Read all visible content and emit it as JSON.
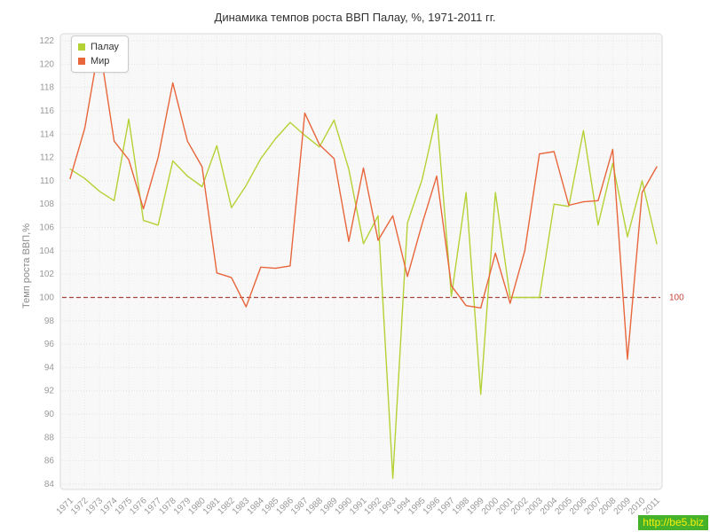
{
  "title": "Динамика темпов роста ВВП Палау, %, 1971-2011 гг.",
  "ylabel": "Темп роста ВВП,%",
  "watermark": "http://be5.biz",
  "colors": {
    "palau": "#b4d235",
    "world": "#e8663c",
    "refline": "#a94642",
    "refline_label": "#c6443a",
    "grid_h": "#e2e2e2",
    "grid_v": "#ebebeb",
    "plot_bg": "#f8f8f8",
    "plot_border": "#d9d9d9",
    "tick_text": "#999999"
  },
  "ref_line": {
    "value": 100,
    "label": "100"
  },
  "chart_data": {
    "type": "line",
    "title": "Динамика темпов роста ВВП Палау, %, 1971-2011 гг.",
    "xlabel": "",
    "ylabel": "Темп роста ВВП,%",
    "ylim": [
      84,
      122
    ],
    "ytick_step": 2,
    "grid": true,
    "legend_position": "top-left",
    "x": [
      1971,
      1972,
      1973,
      1974,
      1975,
      1976,
      1977,
      1978,
      1979,
      1980,
      1981,
      1982,
      1983,
      1984,
      1985,
      1986,
      1987,
      1988,
      1989,
      1990,
      1991,
      1992,
      1993,
      1994,
      1995,
      1996,
      1997,
      1998,
      1999,
      2000,
      2001,
      2002,
      2003,
      2004,
      2005,
      2006,
      2007,
      2008,
      2009,
      2010,
      2011
    ],
    "series": [
      {
        "name": "Палау",
        "color": "#b4d235",
        "values": [
          111.0,
          110.2,
          109.1,
          108.3,
          115.3,
          106.6,
          106.2,
          111.7,
          110.4,
          109.5,
          113.0,
          107.7,
          109.6,
          111.9,
          113.6,
          115.0,
          113.9,
          112.9,
          115.2,
          111.0,
          104.6,
          107.0,
          84.5,
          106.4,
          110.1,
          115.7,
          100.1,
          109.0,
          91.7,
          109.0,
          100.0,
          100.0,
          100.0,
          108.0,
          107.8,
          114.3,
          106.2,
          111.5,
          105.2,
          110.0,
          104.6
        ]
      },
      {
        "name": "Мир",
        "color": "#e8663c",
        "values": [
          110.2,
          114.5,
          121.7,
          113.4,
          111.8,
          107.6,
          112.0,
          118.4,
          113.4,
          111.2,
          102.1,
          101.7,
          99.2,
          102.6,
          102.5,
          102.7,
          115.8,
          113.1,
          111.9,
          104.8,
          111.1,
          104.9,
          107.0,
          101.8,
          106.3,
          110.4,
          101.0,
          99.3,
          99.1,
          103.8,
          99.5,
          104.0,
          112.3,
          112.5,
          107.9,
          108.2,
          108.3,
          112.7,
          94.7,
          109.0,
          111.2
        ]
      }
    ]
  }
}
